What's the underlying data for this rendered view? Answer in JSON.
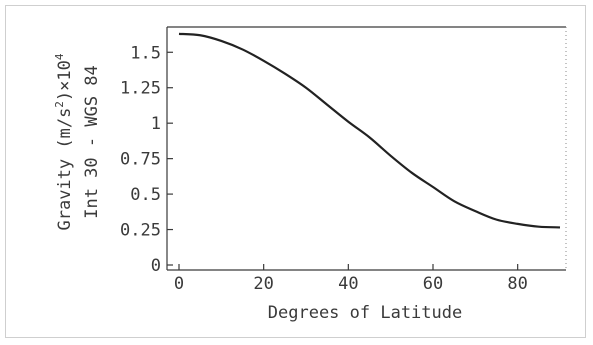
{
  "chart_data": {
    "type": "line",
    "title": "",
    "xlabel": "Degrees of Latitude",
    "ylabel_line1_prefix": "Gravity (m/s",
    "ylabel_line1_exp": "2",
    "ylabel_line1_mid": ")×10",
    "ylabel_line1_pow": "4",
    "ylabel_line2": "Int 30 - WGS 84",
    "xlim": [
      0,
      90
    ],
    "ylim": [
      0,
      1.65
    ],
    "xticks": [
      0,
      20,
      40,
      60,
      80
    ],
    "xtick_labels": [
      "0",
      "20",
      "40",
      "60",
      "80"
    ],
    "yticks": [
      0,
      0.25,
      0.5,
      0.75,
      1,
      1.25,
      1.5
    ],
    "ytick_labels": [
      "0",
      "0.25",
      "0.5",
      "0.75",
      "1",
      "1.25",
      "1.5"
    ],
    "series": [
      {
        "x": [
          0,
          5,
          10,
          15,
          20,
          25,
          30,
          35,
          40,
          45,
          50,
          55,
          60,
          65,
          70,
          75,
          80,
          85,
          90
        ],
        "y": [
          1.63,
          1.62,
          1.58,
          1.52,
          1.44,
          1.35,
          1.25,
          1.13,
          1.01,
          0.9,
          0.77,
          0.65,
          0.55,
          0.45,
          0.38,
          0.32,
          0.29,
          0.27,
          0.265
        ]
      }
    ],
    "grid": false,
    "legend": "none"
  }
}
